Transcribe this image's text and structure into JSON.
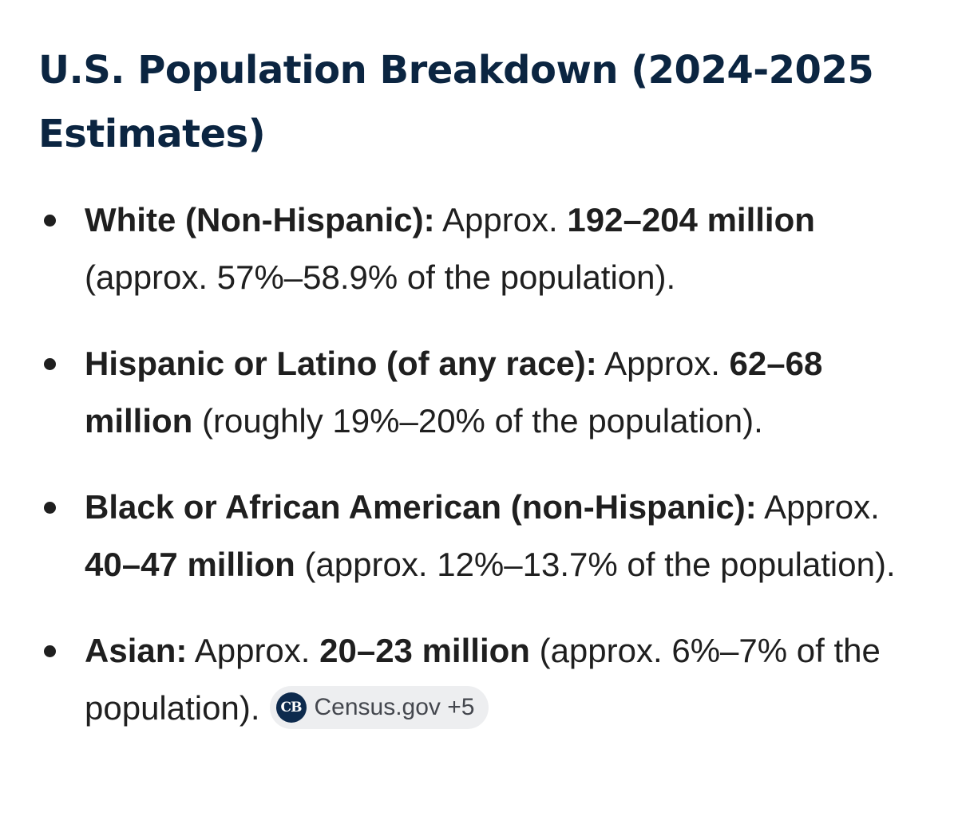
{
  "heading": {
    "title": "U.S. Population Breakdown (2024-2025 Estimates)"
  },
  "items": [
    {
      "label": "White (Non-Hispanic):",
      "prefix": " Approx. ",
      "range": "192–204 million",
      "detail": " (approx. 57%–58.9% of the population)."
    },
    {
      "label": "Hispanic or Latino (of any race):",
      "prefix": " Approx. ",
      "range": "62–68 million",
      "detail": " (roughly 19%–20% of the population)."
    },
    {
      "label": "Black or African American (non-Hispanic):",
      "prefix": " Approx. ",
      "range": "40–47 million",
      "detail": " (approx. 12%–13.7% of the population)."
    },
    {
      "label": "Asian:",
      "prefix": " Approx. ",
      "range": "20–23 million",
      "detail": " (approx. 6%–7% of the population)."
    }
  ],
  "source_chip": {
    "logo_text": "CB",
    "label": "Census.gov +5"
  }
}
